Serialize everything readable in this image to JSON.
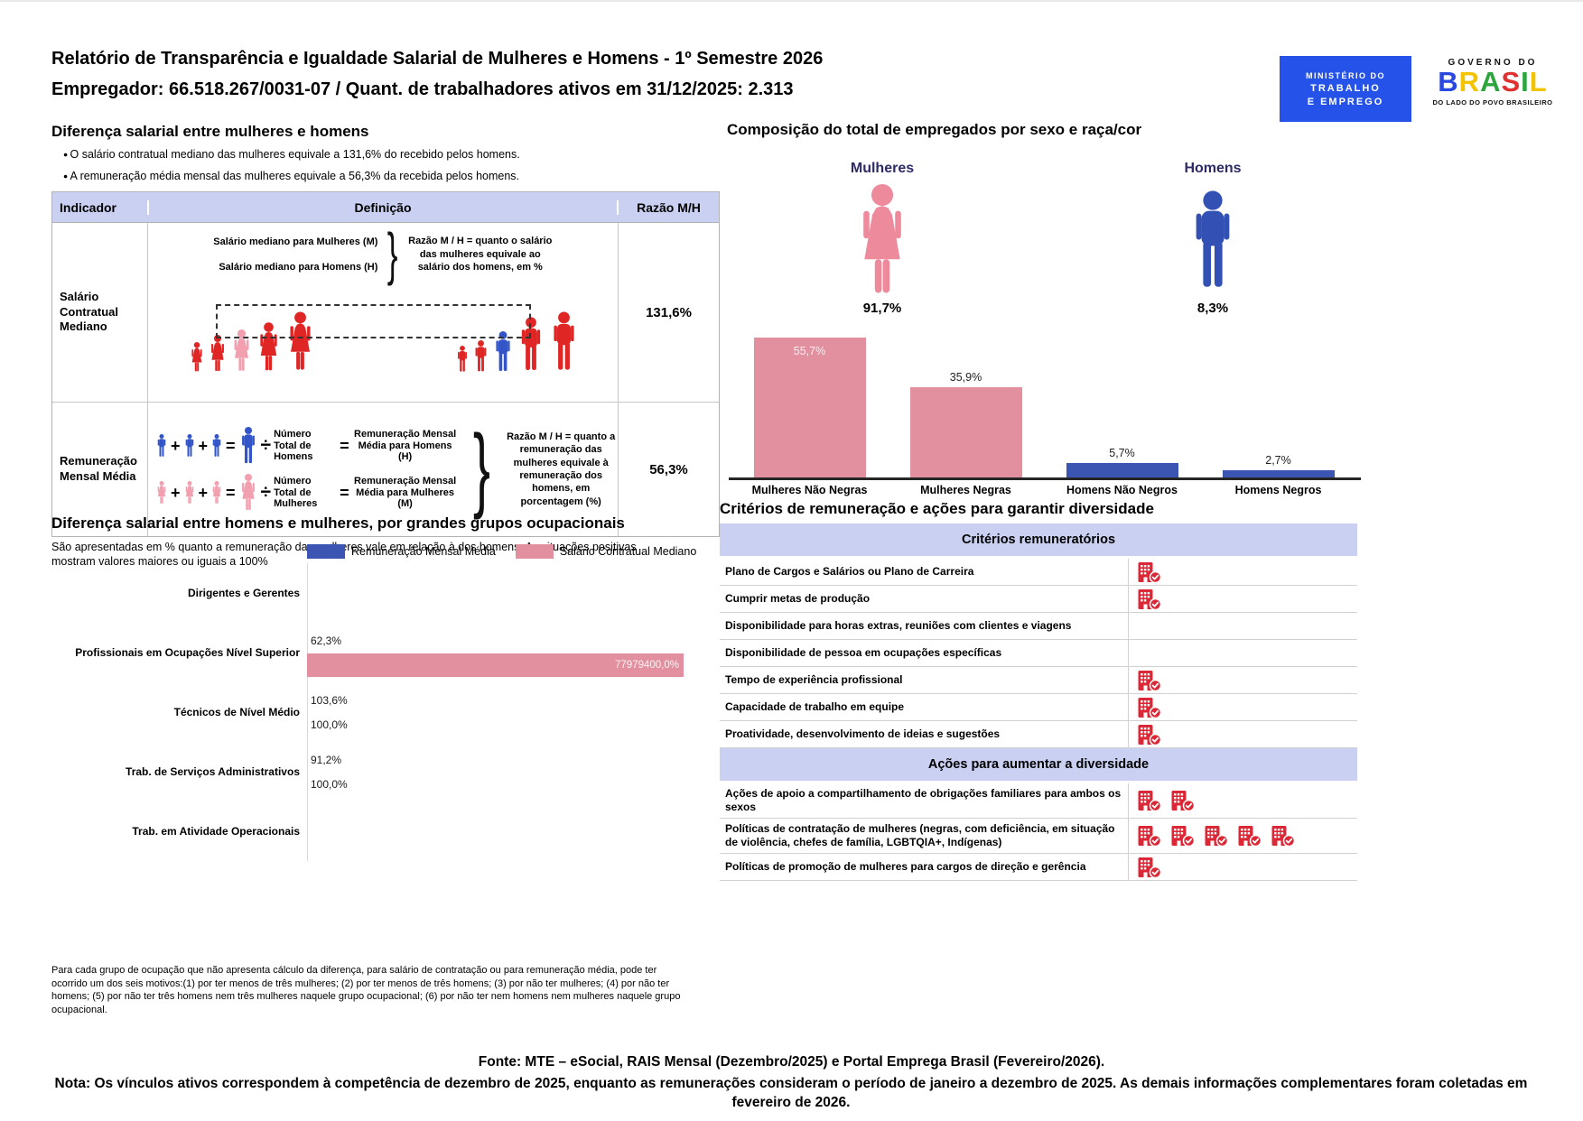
{
  "colors": {
    "lavender_header": "#C9D0F2",
    "pink_bar": "#E2909F",
    "blue_bar": "#3D55B2",
    "red_figure": "#E02525",
    "pink_figure": "#F2A0B0",
    "blue_figure": "#3355C8",
    "woman_icon": "#ED8B9D",
    "man_icon": "#3351B4",
    "building_icon": "#DC2836",
    "navy_label": "#2E2A66",
    "mte_logo_blue": "#2553E9"
  },
  "header": {
    "title_line1": "Relatório de Transparência e Igualdade Salarial de Mulheres e Homens - 1º Semestre 2026",
    "title_line2": "Empregador: 66.518.267/0031-07 / Quant. de trabalhadores ativos em 31/12/2025: 2.313",
    "logo_mte": {
      "line1": "MINISTÉRIO DO",
      "line2": "TRABALHO",
      "line3": "E EMPREGO"
    },
    "logo_brasil": {
      "top": "GOVERNO DO",
      "word": "BRASIL",
      "bottom": "DO LADO DO POVO BRASILEIRO",
      "letter_colors": [
        "#2848DF",
        "#F3C300",
        "#2BA63C",
        "#E03131",
        "#2BA63C",
        "#F3C300"
      ]
    }
  },
  "left_section": {
    "title": "Diferença salarial entre mulheres e homens",
    "bullets": [
      "O salário contratual mediano das mulheres equivale a 131,6% do recebido pelos homens.",
      "A remuneração média mensal das mulheres equivale a 56,3% da recebida pelos homens."
    ],
    "table": {
      "headers": [
        "Indicador",
        "Definição",
        "Razão M/H"
      ],
      "operators": {
        "plus": "+",
        "equals": "=",
        "divide": "÷"
      },
      "brace": "}",
      "rows": [
        {
          "indicator": "Salário Contratual Mediano",
          "def_lines": [
            "Salário mediano para Mulheres (M)",
            "Salário mediano para Homens (H)"
          ],
          "note": "Razão M / H = quanto o salário das mulheres equivale ao salário dos homens, em %",
          "ratio": "131,6%"
        },
        {
          "indicator": "Remuneração Mensal Média",
          "men_divisor": "Número Total de Homens",
          "men_result": "Remuneração Mensal Média para Homens (H)",
          "women_divisor": "Número Total de Mulheres",
          "women_result": "Remuneração Mensal Média para Mulheres (M)",
          "note": "Razão M / H = quanto a remuneração das mulheres equivale à remuneração dos homens, em porcentagem (%)",
          "ratio": "56,3%"
        }
      ]
    }
  },
  "composition": {
    "title": "Composição do total de empregados por sexo e raça/cor",
    "groups": [
      {
        "label": "Mulheres",
        "pct": "91,7%"
      },
      {
        "label": "Homens",
        "pct": "8,3%"
      }
    ]
  },
  "occupation": {
    "title": "Diferença salarial entre homens e mulheres, por grandes grupos ocupacionais",
    "subtitle": "São apresentadas em % quanto a remuneração das mulheres vale em relação à dos homens. As situações positivas mostram valores maiores ou iguais a 100%",
    "footnote": "Para cada grupo de ocupação que não apresenta cálculo da diferença, para salário de contratação ou para remuneração média, pode ter ocorrido um dos seis motivos:(1) por ter menos de três mulheres; (2) por ter menos de três homens; (3) por não ter mulheres; (4) por não ter homens; (5) por não ter três homens nem três mulheres naquele grupo ocupacional; (6) por não ter nem homens nem mulheres naquele grupo ocupacional."
  },
  "criteria": {
    "title": "Critérios de remuneração e ações para garantir diversidade",
    "sections": [
      {
        "header": "Critérios remuneratórios",
        "rows": [
          {
            "label": "Plano de Cargos e Salários ou Plano de Carreira",
            "icons": 1
          },
          {
            "label": "Cumprir metas de produção",
            "icons": 1
          },
          {
            "label": "Disponibilidade para horas extras, reuniões com clientes e viagens",
            "icons": 0
          },
          {
            "label": "Disponibilidade de pessoa em ocupações específicas",
            "icons": 0
          },
          {
            "label": "Tempo de experiência profissional",
            "icons": 1
          },
          {
            "label": "Capacidade de trabalho em equipe",
            "icons": 1
          },
          {
            "label": "Proatividade, desenvolvimento de ideias e sugestões",
            "icons": 1
          }
        ]
      },
      {
        "header": "Ações para aumentar a diversidade",
        "rows": [
          {
            "label": "Ações de apoio a compartilhamento de obrigações familiares para ambos os sexos",
            "icons": 2
          },
          {
            "label": "Políticas de contratação de mulheres (negras, com deficiência, em situação de violência, chefes de família, LGBTQIA+, Indígenas)",
            "icons": 5
          },
          {
            "label": "Políticas de promoção de mulheres para cargos de direção e gerência",
            "icons": 1
          }
        ]
      }
    ]
  },
  "footer": {
    "fonte": "Fonte: MTE – eSocial, RAIS Mensal (Dezembro/2025) e Portal Emprega Brasil (Fevereiro/2026).",
    "nota": "Nota: Os vínculos ativos correspondem à competência de dezembro de 2025, enquanto as remunerações consideram o período de janeiro a dezembro de 2025. As demais informações complementares foram coletadas em fevereiro de 2026."
  },
  "chart_data": [
    {
      "type": "bar",
      "title": "Composição do total de empregados por sexo e raça/cor",
      "categories": [
        "Mulheres Não Negras",
        "Mulheres Negras",
        "Homens Não Negros",
        "Homens Negros"
      ],
      "values": [
        55.7,
        35.9,
        5.7,
        2.7
      ],
      "labels": [
        "55,7%",
        "35,9%",
        "5,7%",
        "2,7%"
      ],
      "label_positions": [
        "inside",
        "above",
        "above",
        "above"
      ],
      "colors": [
        "#E2909F",
        "#E2909F",
        "#3D55B2",
        "#3D55B2"
      ],
      "ylim": [
        0,
        60
      ],
      "summary": {
        "Mulheres": "91,7%",
        "Homens": "8,3%"
      }
    },
    {
      "type": "bar",
      "orientation": "horizontal",
      "title": "Diferença salarial entre homens e mulheres, por grandes grupos ocupacionais",
      "categories": [
        "Dirigentes e Gerentes",
        "Profissionais em Ocupações Nível Superior",
        "Técnicos de Nível Médio",
        "Trab. de Serviços Administrativos",
        "Trab. em Atividade Operacionais"
      ],
      "series": [
        {
          "name": "Remuneração Mensal Média",
          "color": "#3D55B2",
          "values": [
            null,
            62.3,
            103.6,
            91.2,
            null
          ],
          "labels": [
            "",
            "62,3%",
            "103,6%",
            "91,2%",
            ""
          ]
        },
        {
          "name": "Salário Contratual Mediano",
          "color": "#E2909F",
          "values": [
            null,
            77979400.0,
            100.0,
            100.0,
            null
          ],
          "labels": [
            "",
            "77979400,0%",
            "100,0%",
            "100,0%",
            ""
          ]
        }
      ],
      "xlim": [
        0,
        77979400
      ]
    }
  ]
}
